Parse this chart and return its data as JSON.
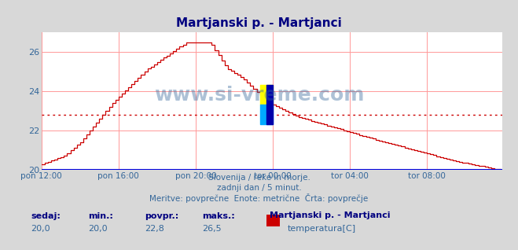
{
  "title": "Martjanski p. - Martjanci",
  "title_color": "#000080",
  "bg_color": "#d8d8d8",
  "plot_bg_color": "#ffffff",
  "grid_color": "#ff9999",
  "axis_color": "#0000cc",
  "line_color": "#cc0000",
  "avg_line_color": "#cc0000",
  "avg_line_style": "dotted",
  "avg_value": 22.8,
  "y_min": 20.0,
  "y_max": 26.5,
  "y_axis_min": 20,
  "y_axis_max": 27,
  "x_labels": [
    "pon 12:00",
    "pon 16:00",
    "pon 20:00",
    "tor 00:00",
    "tor 04:00",
    "tor 08:00"
  ],
  "x_ticks_pos": [
    0,
    48,
    96,
    144,
    192,
    240
  ],
  "total_points": 288,
  "subtitle1": "Slovenija / reke in morje.",
  "subtitle2": "zadnji dan / 5 minut.",
  "subtitle3": "Meritve: povprečne  Enote: metrične  Črta: povprečje",
  "footer_labels": [
    "sedaj:",
    "min.:",
    "povpr.:",
    "maks.:"
  ],
  "footer_values": [
    "20,0",
    "20,0",
    "22,8",
    "26,5"
  ],
  "legend_label": "Martjanski p. - Martjanci",
  "legend_series": "temperatura[C]",
  "legend_color": "#cc0000",
  "watermark": "www.si-vreme.com",
  "watermark_color": "#336699",
  "watermark_alpha": 0.4,
  "arrow_color": "#cc0000",
  "x_axis_color": "#0000dd",
  "tick_label_color": "#336699",
  "footer_key_color": "#000080",
  "footer_val_color": "#336699"
}
